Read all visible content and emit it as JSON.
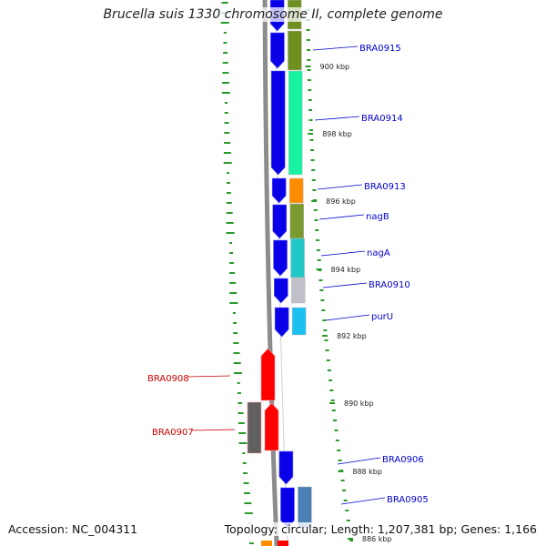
{
  "title": "Brucella suis 1330 chromosome II, complete genome",
  "footer": {
    "accession": "Accession: NC_004311",
    "summary": "Topology: circular; Length: 1,207,381 bp; Genes: 1,166"
  },
  "colors": {
    "forward_gene": "#0a00e8",
    "reverse_gene": "#ff0000",
    "backbone": "#8c8c8c",
    "gc_dots": "#2a9a2a",
    "label_forward": "#0000cc",
    "label_reverse": "#cc0000"
  },
  "position_ticks": [
    {
      "label": "900 kbp"
    },
    {
      "label": "898 kbp"
    },
    {
      "label": "896 kbp"
    },
    {
      "label": "894 kbp"
    },
    {
      "label": "892 kbp"
    },
    {
      "label": "890 kbp"
    },
    {
      "label": "888 kbp"
    },
    {
      "label": "886 kbp"
    }
  ],
  "gene_labels": [
    {
      "text": "BRA0915",
      "strand": "forward"
    },
    {
      "text": "BRA0914",
      "strand": "forward"
    },
    {
      "text": "BRA0913",
      "strand": "forward"
    },
    {
      "text": "nagB",
      "strand": "forward"
    },
    {
      "text": "nagA",
      "strand": "forward"
    },
    {
      "text": "BRA0910",
      "strand": "forward"
    },
    {
      "text": "purU",
      "strand": "forward"
    },
    {
      "text": "BRA0908",
      "strand": "reverse"
    },
    {
      "text": "BRA0907",
      "strand": "reverse"
    },
    {
      "text": "BRA0906",
      "strand": "forward"
    },
    {
      "text": "BRA0905",
      "strand": "forward"
    }
  ]
}
